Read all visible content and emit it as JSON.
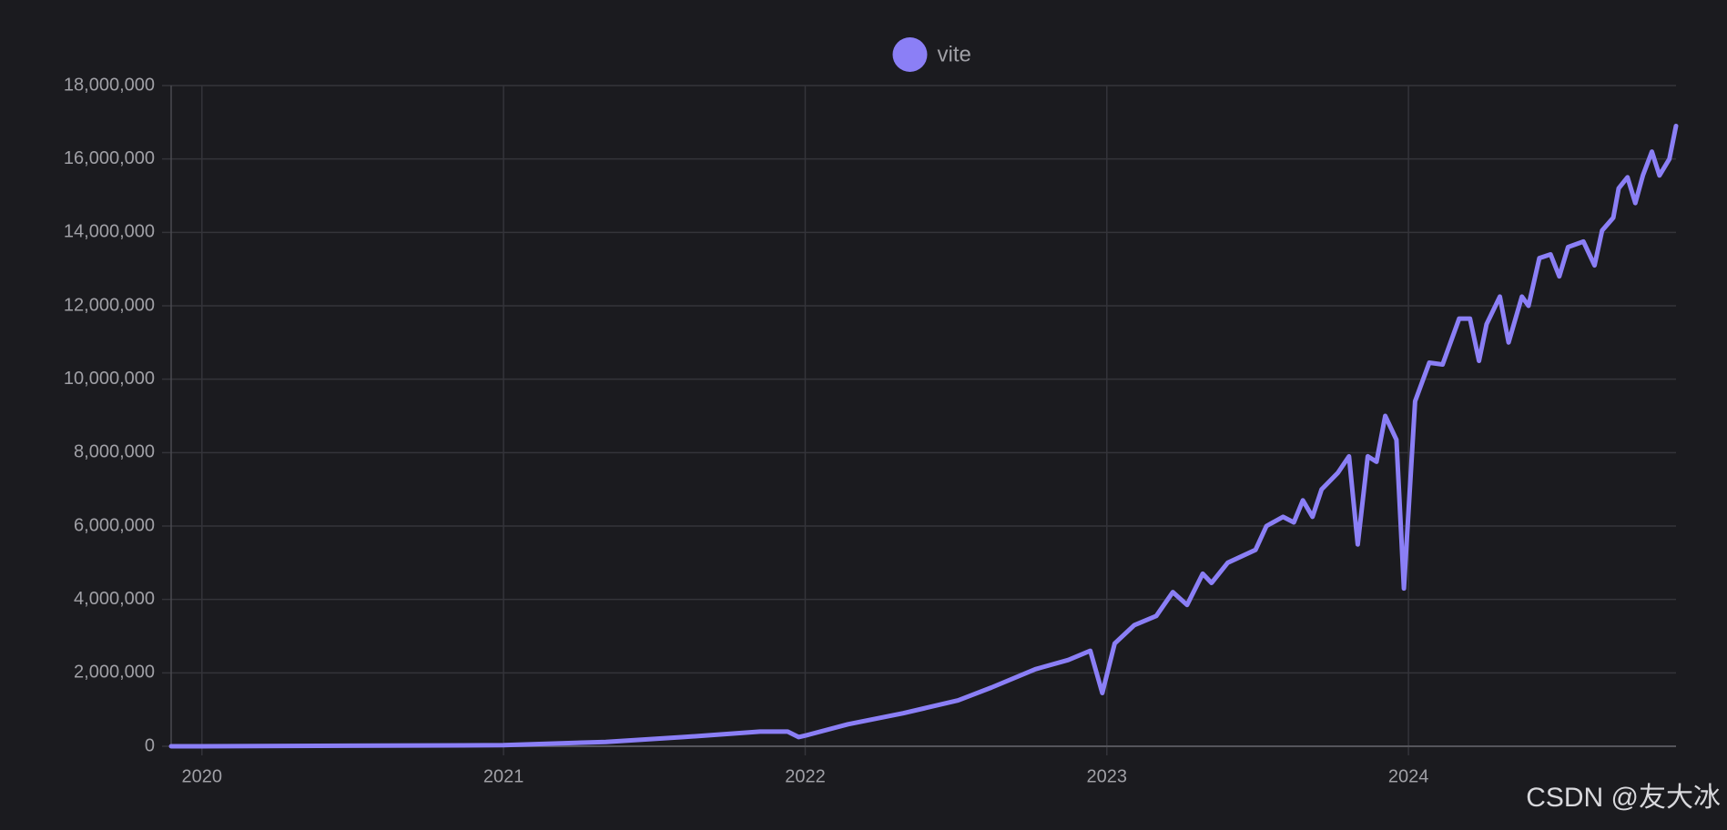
{
  "chart_data": {
    "type": "line",
    "series": [
      {
        "name": "vite",
        "color": "#8b7ff6",
        "x": [
          2019.898,
          2020.0,
          2021.0,
          2021.339,
          2021.595,
          2021.85,
          2021.942,
          2021.978,
          2022.004,
          2022.142,
          2022.325,
          2022.507,
          2022.617,
          2022.763,
          2022.872,
          2022.945,
          2022.985,
          2023.026,
          2023.091,
          2023.164,
          2023.219,
          2023.266,
          2023.318,
          2023.347,
          2023.401,
          2023.493,
          2023.529,
          2023.584,
          2023.62,
          2023.65,
          2023.682,
          2023.712,
          2023.766,
          2023.803,
          2023.832,
          2023.865,
          2023.894,
          2023.923,
          2023.96,
          2023.985,
          2024.022,
          2024.069,
          2024.113,
          2024.168,
          2024.204,
          2024.234,
          2024.259,
          2024.303,
          2024.332,
          2024.376,
          2024.398,
          2024.434,
          2024.471,
          2024.5,
          2024.529,
          2024.58,
          2024.617,
          2024.642,
          2024.679,
          2024.697,
          2024.726,
          2024.752,
          2024.777,
          2024.807,
          2024.832,
          2024.865,
          2024.887
        ],
        "values": [
          0,
          0,
          30000,
          120000,
          250000,
          400000,
          400000,
          250000,
          300000,
          600000,
          900000,
          1250000,
          1600000,
          2100000,
          2350000,
          2600000,
          1450000,
          2800000,
          3300000,
          3550000,
          4200000,
          3850000,
          4700000,
          4450000,
          5000000,
          5350000,
          6000000,
          6250000,
          6100000,
          6700000,
          6250000,
          7000000,
          7450000,
          7900000,
          5500000,
          7900000,
          7750000,
          9000000,
          8350000,
          4300000,
          9400000,
          10450000,
          10400000,
          11650000,
          11650000,
          10500000,
          11500000,
          12250000,
          11000000,
          12250000,
          12000000,
          13300000,
          13400000,
          12800000,
          13600000,
          13750000,
          13100000,
          14050000,
          14400000,
          15200000,
          15500000,
          14800000,
          15550000,
          16200000,
          15550000,
          16000000,
          16900000
        ]
      }
    ],
    "xlim": [
      2019.898,
      2024.887
    ],
    "xticks": [
      2020,
      2021,
      2022,
      2023,
      2024
    ],
    "ylim": [
      0,
      18000000
    ],
    "yticks": [
      0,
      {
        "value": 2000000,
        "label": "2,000,000"
      },
      {
        "value": 4000000,
        "label": "4,000,000"
      },
      {
        "value": 6000000,
        "label": "6,000,000"
      },
      {
        "value": 8000000,
        "label": "8,000,000"
      },
      {
        "value": 10000000,
        "label": "10,000,000"
      },
      {
        "value": 12000000,
        "label": "12,000,000"
      },
      {
        "value": 14000000,
        "label": "14,000,000"
      },
      {
        "value": 16000000,
        "label": "16,000,000"
      },
      {
        "value": 18000000,
        "label": "18,000,000"
      }
    ],
    "grid": true,
    "legend": "top",
    "watermark": "CSDN @友大冰"
  }
}
